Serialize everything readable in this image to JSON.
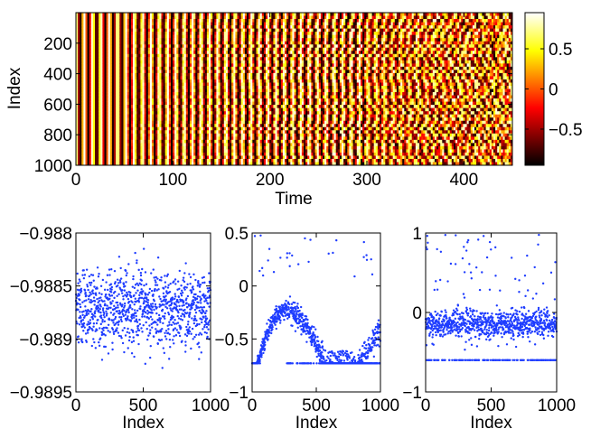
{
  "figure": {
    "colors": {
      "scatter_point": "#1f3dff",
      "axis": "#000000",
      "background": "#ffffff"
    }
  },
  "chart_data": [
    {
      "type": "heatmap",
      "title": "",
      "xlabel": "Time",
      "ylabel": "Index",
      "xlim": [
        0,
        450
      ],
      "ylim": [
        0,
        1000
      ],
      "y_reversed": true,
      "x_ticks": [
        0,
        100,
        200,
        300,
        400
      ],
      "y_ticks": [
        200,
        400,
        600,
        800,
        1000
      ],
      "colormap": "hot",
      "colorbar": {
        "range": [
          -0.95,
          0.95
        ],
        "ticks": [
          -0.5,
          0,
          0.5
        ],
        "tick_labels": [
          "−0.5",
          "0",
          "0.5"
        ]
      },
      "regions": [
        {
          "time_range": [
            0,
            50
          ],
          "pattern": "regular vertical stripes (synchronized oscillation)"
        },
        {
          "time_range": [
            50,
            300
          ],
          "pattern": "stripes with slight spatial disorder"
        },
        {
          "time_range": [
            300,
            450
          ],
          "pattern": "disordered / incoherent"
        }
      ]
    },
    {
      "type": "scatter",
      "title": "",
      "xlabel": "Index",
      "ylabel": "",
      "xlim": [
        0,
        1000
      ],
      "ylim": [
        -0.9895,
        -0.988
      ],
      "x_ticks": [
        0,
        500,
        1000
      ],
      "y_ticks": [
        -0.9895,
        -0.989,
        -0.9885,
        -0.988
      ],
      "y_tick_labels": [
        "−0.9895",
        "−0.989",
        "−0.9885",
        "−0.988"
      ],
      "n_points": 1000,
      "description_stats": {
        "mean": -0.98872,
        "std": 0.00018
      }
    },
    {
      "type": "scatter",
      "title": "",
      "xlabel": "Index",
      "ylabel": "",
      "xlim": [
        0,
        1000
      ],
      "ylim": [
        -1,
        0.5
      ],
      "x_ticks": [
        0,
        500,
        1000
      ],
      "y_ticks": [
        -1,
        -0.5,
        0,
        0.5
      ],
      "y_tick_labels": [
        "−1",
        "−0.5",
        "0",
        "0.5"
      ],
      "n_points": 1000,
      "floor_value": -0.73
    },
    {
      "type": "scatter",
      "title": "",
      "xlabel": "Index",
      "ylabel": "",
      "xlim": [
        0,
        1000
      ],
      "ylim": [
        -1,
        1
      ],
      "x_ticks": [
        0,
        500,
        1000
      ],
      "y_ticks": [
        -1,
        0,
        1
      ],
      "y_tick_labels": [
        "−1",
        "0",
        "1"
      ],
      "n_points": 1000,
      "floor_value": -0.6,
      "band_center": -0.15
    }
  ]
}
